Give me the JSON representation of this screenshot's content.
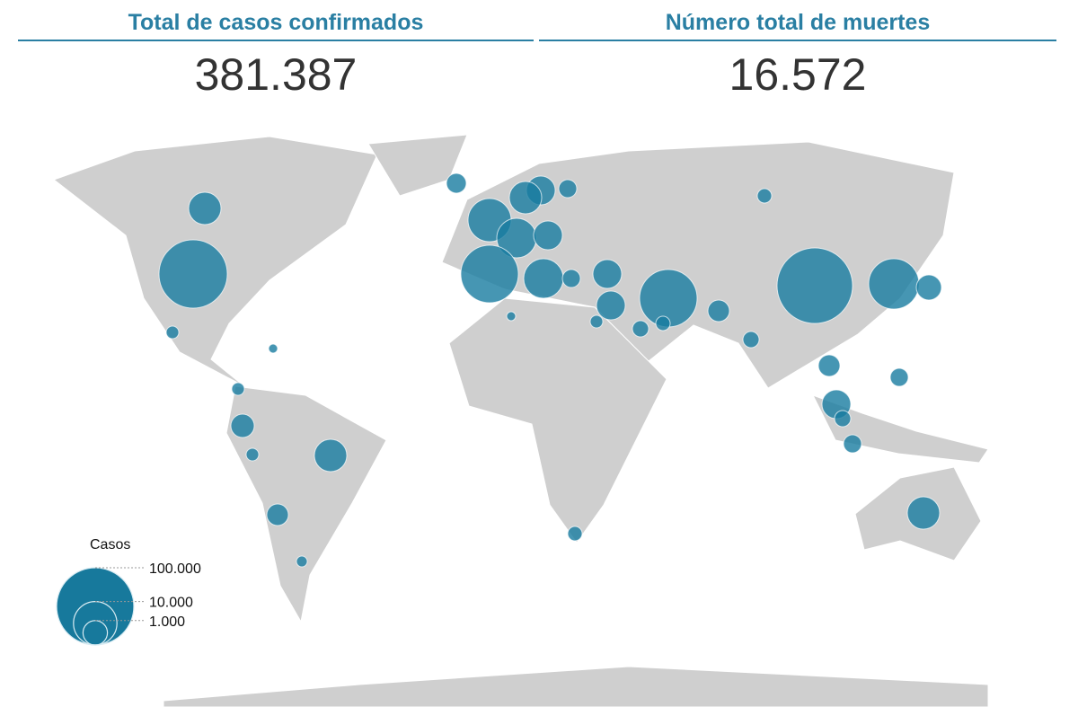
{
  "header": {
    "cases_title": "Total de casos confirmados",
    "cases_total": "381.387",
    "deaths_title": "Número total de muertes",
    "deaths_total": "16.572"
  },
  "legend": {
    "title": "Casos",
    "sizes": [
      {
        "value": 100000,
        "label": "100.000"
      },
      {
        "value": 10000,
        "label": "10.000"
      },
      {
        "value": 1000,
        "label": "1.000"
      }
    ]
  }
}
